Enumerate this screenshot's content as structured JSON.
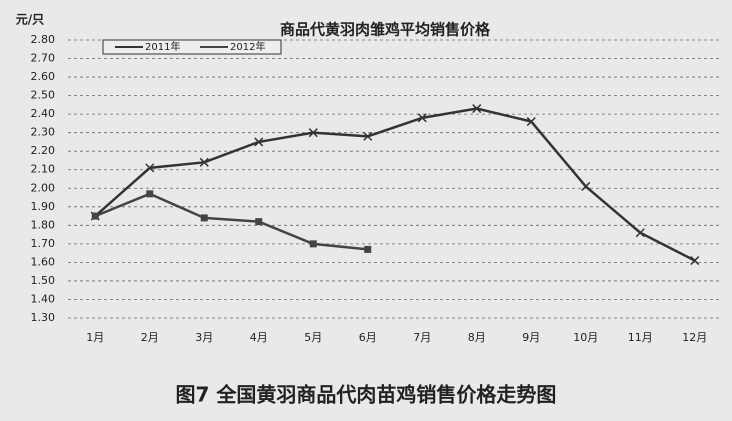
{
  "chart_data": {
    "type": "line",
    "title": "商品代黄羽肉雏鸡平均销售价格",
    "y_label": "元/只",
    "caption": "图7 全国黄羽商品代肉苗鸡销售价格走势图",
    "categories": [
      "1月",
      "2月",
      "3月",
      "4月",
      "5月",
      "6月",
      "7月",
      "8月",
      "9月",
      "10月",
      "11月",
      "12月"
    ],
    "series": [
      {
        "name": "2011年",
        "color": "#333333",
        "values": [
          1.85,
          2.11,
          2.14,
          2.25,
          2.3,
          2.28,
          2.38,
          2.43,
          2.36,
          2.01,
          1.76,
          1.61
        ]
      },
      {
        "name": "2012年",
        "color": "#444444",
        "values": [
          1.85,
          1.97,
          1.84,
          1.82,
          1.7,
          1.67,
          null,
          null,
          null,
          null,
          null,
          null
        ]
      }
    ],
    "ylim": [
      1.3,
      2.8
    ],
    "yticks": [
      {
        "value": 1.3,
        "label": "1.30"
      },
      {
        "value": 1.4,
        "label": "1.40"
      },
      {
        "value": 1.5,
        "label": "1.50"
      },
      {
        "value": 1.6,
        "label": "1.60"
      },
      {
        "value": 1.7,
        "label": "1.70"
      },
      {
        "value": 1.8,
        "label": "1.80"
      },
      {
        "value": 1.9,
        "label": "1.90"
      },
      {
        "value": 2.0,
        "label": "2.00"
      },
      {
        "value": 2.1,
        "label": "2.10"
      },
      {
        "value": 2.2,
        "label": "2.20"
      },
      {
        "value": 2.3,
        "label": "2.30"
      },
      {
        "value": 2.4,
        "label": "2.40"
      },
      {
        "value": 2.5,
        "label": "2.50"
      },
      {
        "value": 2.6,
        "label": "2.60"
      },
      {
        "value": 2.7,
        "label": "2.70"
      },
      {
        "value": 2.8,
        "label": "2.80"
      }
    ],
    "grid": true
  }
}
